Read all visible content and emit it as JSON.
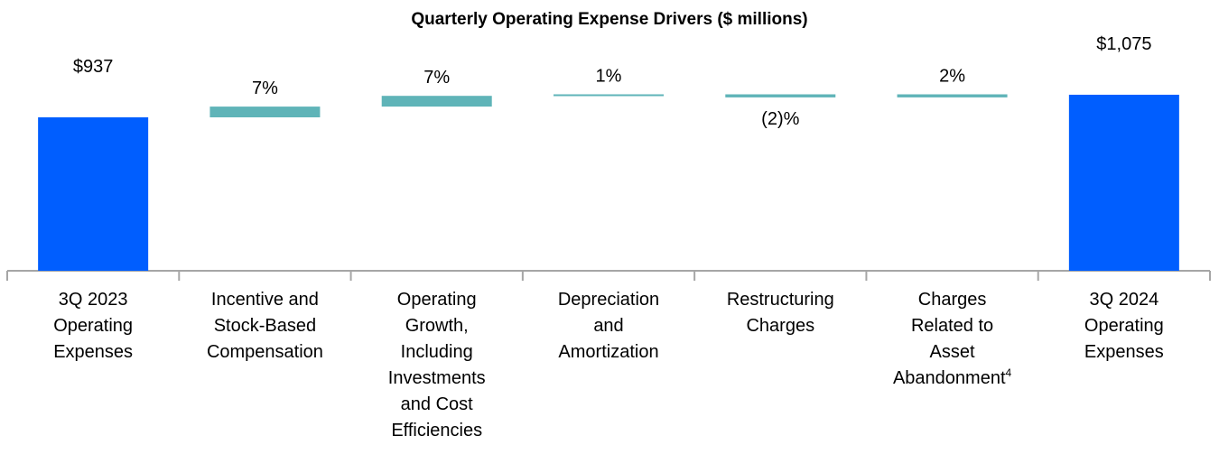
{
  "chart_data": {
    "type": "bar",
    "subtype": "waterfall",
    "title": "Quarterly Operating Expense Drivers ($ millions)",
    "categories": [
      {
        "lines": [
          "3Q 2023",
          "Operating",
          "Expenses"
        ],
        "kind": "total",
        "value": 937,
        "label": "$937"
      },
      {
        "lines": [
          "Incentive and",
          "Stock-Based",
          "Compensation"
        ],
        "kind": "delta",
        "pct": 7,
        "label": "7%"
      },
      {
        "lines": [
          "Operating",
          "Growth,",
          "Including",
          "Investments",
          "and Cost",
          "Efficiencies"
        ],
        "kind": "delta",
        "pct": 7,
        "label": "7%"
      },
      {
        "lines": [
          "Depreciation",
          "and",
          "Amortization"
        ],
        "kind": "delta",
        "pct": 1,
        "label": "1%"
      },
      {
        "lines": [
          "Restructuring",
          "Charges"
        ],
        "kind": "delta",
        "pct": -2,
        "label": "(2)%"
      },
      {
        "lines": [
          "Charges",
          "Related to",
          "Asset",
          "Abandonment"
        ],
        "footnote": "4",
        "kind": "delta",
        "pct": 2,
        "label": "2%"
      },
      {
        "lines": [
          "3Q 2024",
          "Operating",
          "Expenses"
        ],
        "kind": "total",
        "value": 1075,
        "label": "$1,075"
      }
    ],
    "grid": false,
    "legend": "none",
    "colors": {
      "total": "#005EFF",
      "delta": "#5FB4B8",
      "axis": "#A6A6A6"
    }
  }
}
